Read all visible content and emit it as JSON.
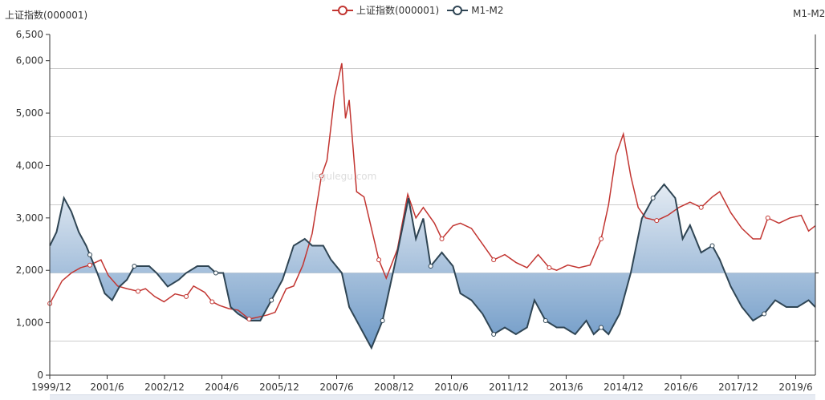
{
  "legend": {
    "series1_label": "上证指数(000001)",
    "series2_label": "M1-M2"
  },
  "axis": {
    "left_title": "上证指数(000001)",
    "right_title": "M1-M2"
  },
  "watermark": "legulegu.com",
  "colors": {
    "index_line": "#c23531",
    "m1m2_line": "#2f4554",
    "area_top": "#e4ebf3",
    "area_bottom": "#6f9ac7",
    "grid": "#cccccc",
    "axis": "#333333"
  },
  "chart_data": {
    "type": "line",
    "title": "",
    "x_labels": [
      "1999/12",
      "2001/6",
      "2002/12",
      "2004/6",
      "2005/12",
      "2007/6",
      "2008/12",
      "2010/6",
      "2011/12",
      "2013/6",
      "2014/12",
      "2016/6",
      "2017/12",
      "2019/6"
    ],
    "x_range": [
      1999.917,
      2020.583
    ],
    "left_axis": {
      "ylim": [
        0,
        6500
      ],
      "ticks": [
        0,
        1000,
        2000,
        3000,
        4000,
        5000,
        6000,
        6500
      ],
      "tick_labels": [
        "0",
        "1,000",
        "2,000",
        "3,000",
        "4,000",
        "5,000",
        "6,000",
        "6,500"
      ]
    },
    "right_axis": {
      "ylim": [
        -15,
        35
      ],
      "baseline": 0
    },
    "series": [
      {
        "name": "上证指数(000001)",
        "axis": "left",
        "x": [
          1999.92,
          2000.25,
          2000.5,
          2000.75,
          2001.0,
          2001.3,
          2001.5,
          2001.75,
          2002.0,
          2002.3,
          2002.5,
          2002.75,
          2003.0,
          2003.3,
          2003.6,
          2003.8,
          2004.1,
          2004.3,
          2004.5,
          2004.75,
          2005.0,
          2005.3,
          2005.5,
          2005.8,
          2006.0,
          2006.3,
          2006.5,
          2006.75,
          2007.0,
          2007.25,
          2007.4,
          2007.6,
          2007.8,
          2007.9,
          2008.0,
          2008.2,
          2008.4,
          2008.6,
          2008.8,
          2009.0,
          2009.3,
          2009.58,
          2009.8,
          2010.0,
          2010.3,
          2010.5,
          2010.8,
          2011.0,
          2011.3,
          2011.6,
          2011.9,
          2012.2,
          2012.5,
          2012.8,
          2013.1,
          2013.4,
          2013.6,
          2013.9,
          2014.2,
          2014.5,
          2014.8,
          2015.0,
          2015.2,
          2015.4,
          2015.6,
          2015.8,
          2016.0,
          2016.3,
          2016.6,
          2016.9,
          2017.2,
          2017.5,
          2017.8,
          2018.0,
          2018.3,
          2018.6,
          2018.9,
          2019.1,
          2019.3,
          2019.6,
          2019.9,
          2020.2,
          2020.4,
          2020.58
        ],
        "values": [
          1366,
          1800,
          1950,
          2050,
          2100,
          2200,
          1900,
          1700,
          1650,
          1600,
          1650,
          1500,
          1400,
          1550,
          1500,
          1700,
          1580,
          1400,
          1330,
          1270,
          1240,
          1070,
          1100,
          1150,
          1200,
          1650,
          1700,
          2100,
          2700,
          3800,
          4100,
          5300,
          5950,
          4900,
          5250,
          3500,
          3400,
          2800,
          2200,
          1850,
          2400,
          3450,
          3000,
          3200,
          2900,
          2600,
          2850,
          2900,
          2800,
          2500,
          2200,
          2300,
          2150,
          2050,
          2300,
          2050,
          2000,
          2100,
          2050,
          2100,
          2600,
          3250,
          4200,
          4600,
          3800,
          3200,
          3000,
          2950,
          3050,
          3200,
          3300,
          3200,
          3400,
          3500,
          3100,
          2800,
          2600,
          2600,
          3000,
          2900,
          3000,
          3050,
          2750,
          2850
        ]
      },
      {
        "name": "M1-M2",
        "axis": "right",
        "x": [
          1999.92,
          2000.1,
          2000.3,
          2000.5,
          2000.7,
          2000.9,
          2001.2,
          2001.4,
          2001.6,
          2001.8,
          2002.0,
          2002.2,
          2002.4,
          2002.6,
          2002.8,
          2003.1,
          2003.4,
          2003.6,
          2003.9,
          2004.2,
          2004.4,
          2004.6,
          2004.8,
          2005.0,
          2005.3,
          2005.6,
          2005.9,
          2006.2,
          2006.5,
          2006.8,
          2007.0,
          2007.3,
          2007.5,
          2007.8,
          2008.0,
          2008.3,
          2008.6,
          2008.9,
          2009.1,
          2009.3,
          2009.6,
          2009.8,
          2010.0,
          2010.2,
          2010.5,
          2010.8,
          2011.0,
          2011.3,
          2011.6,
          2011.9,
          2012.2,
          2012.5,
          2012.8,
          2013.0,
          2013.3,
          2013.6,
          2013.8,
          2014.1,
          2014.4,
          2014.6,
          2014.8,
          2015.0,
          2015.3,
          2015.6,
          2015.9,
          2016.2,
          2016.5,
          2016.8,
          2017.0,
          2017.2,
          2017.5,
          2017.8,
          2018.0,
          2018.3,
          2018.6,
          2018.9,
          2019.2,
          2019.5,
          2019.8,
          2020.1,
          2020.4,
          2020.58
        ],
        "values": [
          4,
          6,
          11,
          9,
          6,
          4,
          0,
          -3,
          -4,
          -2,
          -1,
          1,
          1,
          1,
          0,
          -2,
          -1,
          0,
          1,
          1,
          0,
          0,
          -5,
          -6,
          -7,
          -7,
          -4,
          -1,
          4,
          5,
          4,
          4,
          2,
          0,
          -5,
          -8,
          -11,
          -7,
          -2,
          3,
          11,
          5,
          8,
          1,
          3,
          1,
          -3,
          -4,
          -6,
          -9,
          -8,
          -9,
          -8,
          -4,
          -7,
          -8,
          -8,
          -9,
          -7,
          -9,
          -8,
          -9,
          -6,
          0,
          8,
          11,
          13,
          11,
          5,
          7,
          3,
          4,
          2,
          -2,
          -5,
          -7,
          -6,
          -4,
          -5,
          -5,
          -4,
          -5
        ]
      }
    ],
    "markers": {
      "index_x": [
        1999.92,
        2001.0,
        2002.3,
        2003.6,
        2004.3,
        2005.3,
        2007.25,
        2008.8,
        2010.5,
        2011.9,
        2013.4,
        2014.8,
        2016.3,
        2017.5,
        2019.3
      ],
      "m1m2_x": [
        2001.0,
        2002.2,
        2004.4,
        2005.9,
        2008.9,
        2010.2,
        2011.9,
        2013.3,
        2014.8,
        2016.2,
        2017.8,
        2019.2
      ]
    }
  }
}
